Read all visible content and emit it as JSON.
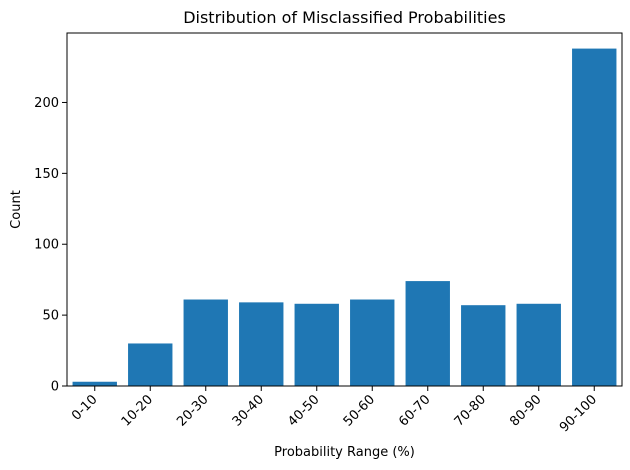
{
  "chart_data": {
    "type": "bar",
    "title": "Distribution of Misclassified Probabilities",
    "xlabel": "Probability Range (%)",
    "ylabel": "Count",
    "categories": [
      "0-10",
      "10-20",
      "20-30",
      "30-40",
      "40-50",
      "50-60",
      "60-70",
      "70-80",
      "80-90",
      "90-100"
    ],
    "values": [
      3,
      30,
      61,
      59,
      58,
      61,
      74,
      57,
      58,
      238
    ],
    "ylim": [
      0,
      249
    ],
    "yticks": [
      0,
      50,
      100,
      150,
      200
    ],
    "grid": false,
    "legend": "none",
    "bar_color": "#1f77b4"
  }
}
